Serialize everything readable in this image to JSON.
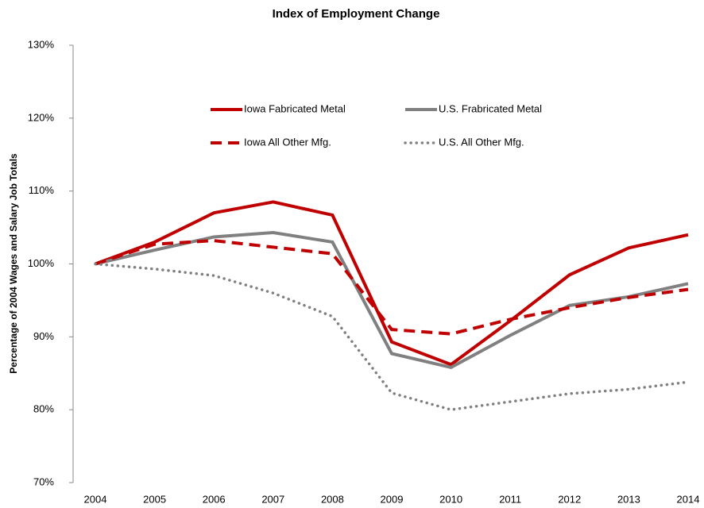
{
  "chart_data": {
    "type": "line",
    "title": "Index of Employment Change",
    "y_label": "Percentage of 2004 Wages and Salary Job Totals",
    "categories": [
      "2004",
      "2005",
      "2006",
      "2007",
      "2008",
      "2009",
      "2010",
      "2011",
      "2012",
      "2013",
      "2014"
    ],
    "series": [
      {
        "name": "Iowa Fabricated Metal",
        "color": "#c00000",
        "linestyle": "solid",
        "values": [
          100,
          103.0,
          107.0,
          108.5,
          106.7,
          89.3,
          86.2,
          92.2,
          98.5,
          102.2,
          104.0
        ]
      },
      {
        "name": "U.S. Frabricated Metal",
        "color": "#808080",
        "linestyle": "solid",
        "values": [
          100,
          101.9,
          103.7,
          104.3,
          103.0,
          87.7,
          85.8,
          90.2,
          94.3,
          95.5,
          97.3
        ]
      },
      {
        "name": "Iowa All Other Mfg.",
        "color": "#c00000",
        "linestyle": "dashed",
        "values": [
          100,
          102.7,
          103.2,
          102.3,
          101.4,
          91.0,
          90.4,
          92.4,
          94.0,
          95.4,
          96.5
        ]
      },
      {
        "name": "U.S. All Other Mfg.",
        "color": "#808080",
        "linestyle": "dotted",
        "values": [
          100,
          99.3,
          98.4,
          96.0,
          92.8,
          82.3,
          80.0,
          81.1,
          82.2,
          82.8,
          83.8
        ]
      }
    ],
    "ylim": [
      70,
      130
    ],
    "yticks": [
      {
        "value": 70,
        "label": "70%"
      },
      {
        "value": 80,
        "label": "80%"
      },
      {
        "value": 90,
        "label": "90%"
      },
      {
        "value": 100,
        "label": "100%"
      },
      {
        "value": 110,
        "label": "110%"
      },
      {
        "value": 120,
        "label": "120%"
      },
      {
        "value": 130,
        "label": "130%"
      }
    ],
    "grid": false,
    "legend": "upper center"
  }
}
